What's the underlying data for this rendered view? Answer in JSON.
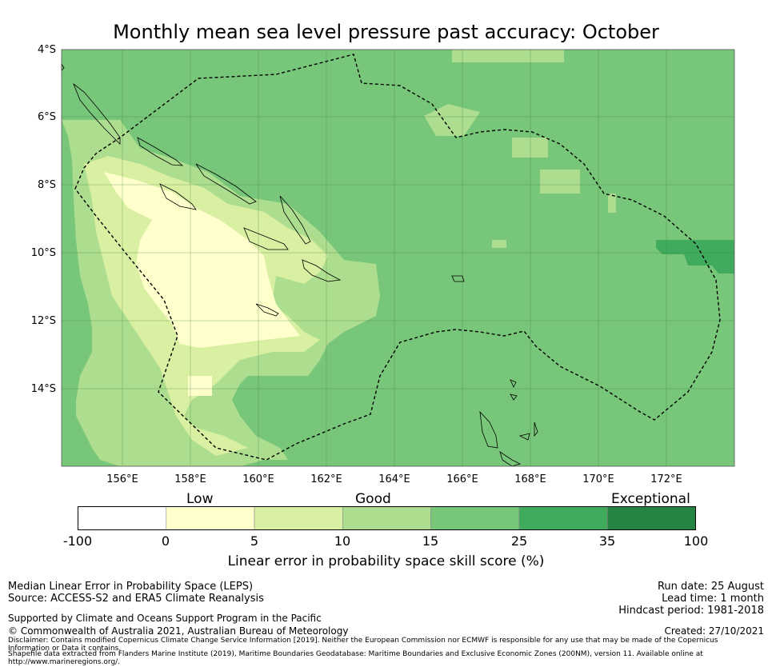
{
  "title": "Monthly mean sea level pressure past accuracy: October",
  "map": {
    "lat_labels": [
      "4°S",
      "6°S",
      "8°S",
      "10°S",
      "12°S",
      "14°S"
    ],
    "lon_labels": [
      "156°E",
      "158°E",
      "160°E",
      "162°E",
      "164°E",
      "166°E",
      "168°E",
      "170°E",
      "172°E"
    ],
    "background_category": "15 to 25",
    "colors": {
      "sea_mid": "#78c679",
      "good_light": "#addd8e",
      "low": "#d9f0a3",
      "very_low": "#ffffcc",
      "high": "#41ab5d",
      "dashed_boundary": "#000000"
    }
  },
  "colorbar": {
    "categories": [
      "Low",
      "Good",
      "Exceptional"
    ],
    "ticks": [
      "-100",
      "0",
      "5",
      "10",
      "15",
      "25",
      "35",
      "100"
    ],
    "colors": [
      "#ffffff",
      "#ffffcc",
      "#d9f0a3",
      "#addd8e",
      "#78c679",
      "#41ab5d",
      "#238443"
    ],
    "label": "Linear error in probability space skill score (%)"
  },
  "footer": {
    "method": "Median Linear Error in Probability Space (LEPS)",
    "source": "Source: ACCESS-S2 and ERA5 Climate Reanalysis",
    "supported": "Supported by Climate and Oceans Support Program in the Pacific",
    "copyright": "© Commonwealth of Australia 2021, Australian Bureau of Meteorology",
    "disclaimer": "Disclaimer: Contains modified Copernicus Climate Change Service Information [2019]. Neither the European Commission nor ECMWF is responsible for any use that may be made of the Copernicus Information or Data it contains.",
    "shapefile": "Shapefile data extracted from Flanders Marine Institute (2019), Maritime Boundaries Geodatabase: Maritime Boundaries and Exclusive Economic Zones (200NM), version 11. Available online at http://www.marineregions.org/.",
    "run_date": "Run date: 25 August",
    "lead_time": "Lead time: 1 month",
    "hindcast": "Hindcast period: 1981-2018",
    "created": "Created: 27/10/2021"
  }
}
